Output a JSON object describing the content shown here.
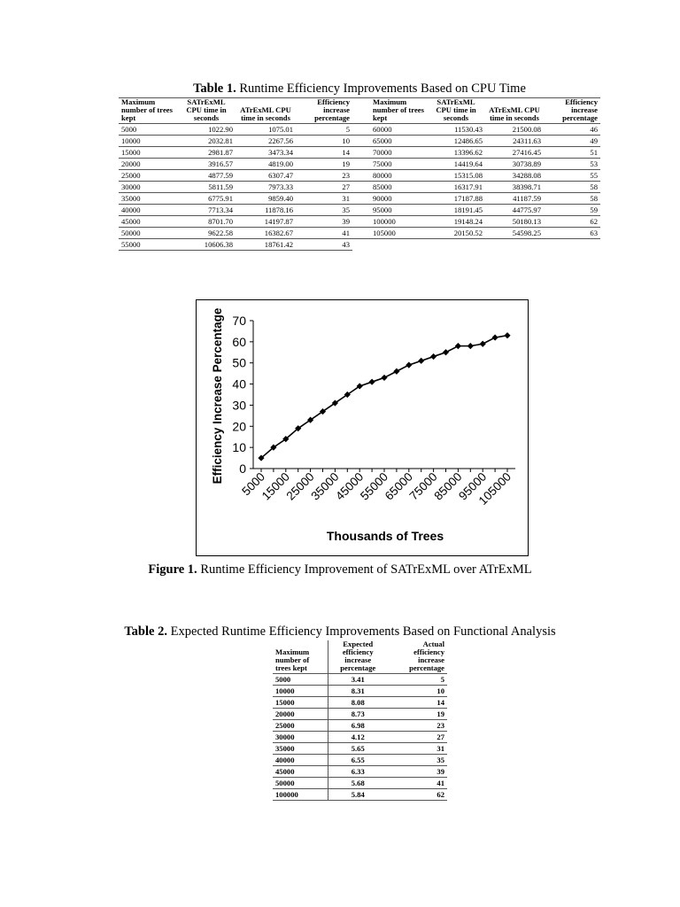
{
  "table1": {
    "caption_label": "Table 1.",
    "caption_text": " Runtime Efficiency Improvements Based on CPU Time",
    "headers": [
      "Maximum number of trees kept",
      "SATrExML CPU time in seconds",
      "ATrExML CPU time in seconds",
      "Efficiency increase percentage",
      "Maximum number of trees kept",
      "SATrExML CPU time in seconds",
      "ATrExML CPU time in seconds",
      "Efficiency increase percentage"
    ],
    "rows_left": [
      [
        "5000",
        "1022.90",
        "1075.01",
        "5"
      ],
      [
        "10000",
        "2032.81",
        "2267.56",
        "10"
      ],
      [
        "15000",
        "2981.87",
        "3473.34",
        "14"
      ],
      [
        "20000",
        "3916.57",
        "4819.00",
        "19"
      ],
      [
        "25000",
        "4877.59",
        "6307.47",
        "23"
      ],
      [
        "30000",
        "5811.59",
        "7973.33",
        "27"
      ],
      [
        "35000",
        "6775.91",
        "9859.40",
        "31"
      ],
      [
        "40000",
        "7713.34",
        "11878.16",
        "35"
      ],
      [
        "45000",
        "8701.70",
        "14197.87",
        "39"
      ],
      [
        "50000",
        "9622.58",
        "16382.67",
        "41"
      ],
      [
        "55000",
        "10606.38",
        "18761.42",
        "43"
      ]
    ],
    "rows_right": [
      [
        "60000",
        "11530.43",
        "21500.08",
        "46"
      ],
      [
        "65000",
        "12486.65",
        "24311.63",
        "49"
      ],
      [
        "70000",
        "13396.62",
        "27416.45",
        "51"
      ],
      [
        "75000",
        "14419.64",
        "30738.89",
        "53"
      ],
      [
        "80000",
        "15315.08",
        "34288.08",
        "55"
      ],
      [
        "85000",
        "16317.91",
        "38398.71",
        "58"
      ],
      [
        "90000",
        "17187.88",
        "41187.59",
        "58"
      ],
      [
        "95000",
        "18191.45",
        "44775.97",
        "59"
      ],
      [
        "100000",
        "19148.24",
        "50180.13",
        "62"
      ],
      [
        "105000",
        "20150.52",
        "54598.25",
        "63"
      ]
    ]
  },
  "figure1": {
    "caption_label": "Figure 1.",
    "caption_text": " Runtime Efficiency Improvement of SATrExML over ATrExML"
  },
  "chart_data": {
    "type": "line",
    "title": "",
    "xlabel": "Thousands of Trees",
    "ylabel": "Efficiency Increase Percentage",
    "x": [
      "5000",
      "10000",
      "15000",
      "20000",
      "25000",
      "30000",
      "35000",
      "40000",
      "45000",
      "50000",
      "55000",
      "60000",
      "65000",
      "70000",
      "75000",
      "80000",
      "85000",
      "90000",
      "95000",
      "100000",
      "105000"
    ],
    "x_tick_labels": [
      "5000",
      "15000",
      "25000",
      "35000",
      "45000",
      "55000",
      "65000",
      "75000",
      "85000",
      "95000",
      "105000"
    ],
    "y_ticks": [
      0,
      10,
      20,
      30,
      40,
      50,
      60,
      70
    ],
    "ylim": [
      0,
      70
    ],
    "grid": false,
    "series": [
      {
        "values": [
          5,
          10,
          14,
          19,
          23,
          27,
          31,
          35,
          39,
          41,
          43,
          46,
          49,
          51,
          53,
          55,
          58,
          58,
          59,
          62,
          63
        ],
        "color": "#000000",
        "marker": "diamond"
      }
    ]
  },
  "table2": {
    "caption_label": "Table 2.",
    "caption_text": " Expected Runtime Efficiency Improvements Based on Functional Analysis",
    "headers": [
      "Maximum number of trees kept",
      "Expected efficiency increase percentage",
      "Actual efficiency increase percentage"
    ],
    "rows": [
      [
        "5000",
        "3.41",
        "5"
      ],
      [
        "10000",
        "8.31",
        "10"
      ],
      [
        "15000",
        "8.08",
        "14"
      ],
      [
        "20000",
        "8.73",
        "19"
      ],
      [
        "25000",
        "6.98",
        "23"
      ],
      [
        "30000",
        "4.12",
        "27"
      ],
      [
        "35000",
        "5.65",
        "31"
      ],
      [
        "40000",
        "6.55",
        "35"
      ],
      [
        "45000",
        "6.33",
        "39"
      ],
      [
        "50000",
        "5.68",
        "41"
      ],
      [
        "100000",
        "5.84",
        "62"
      ]
    ]
  }
}
